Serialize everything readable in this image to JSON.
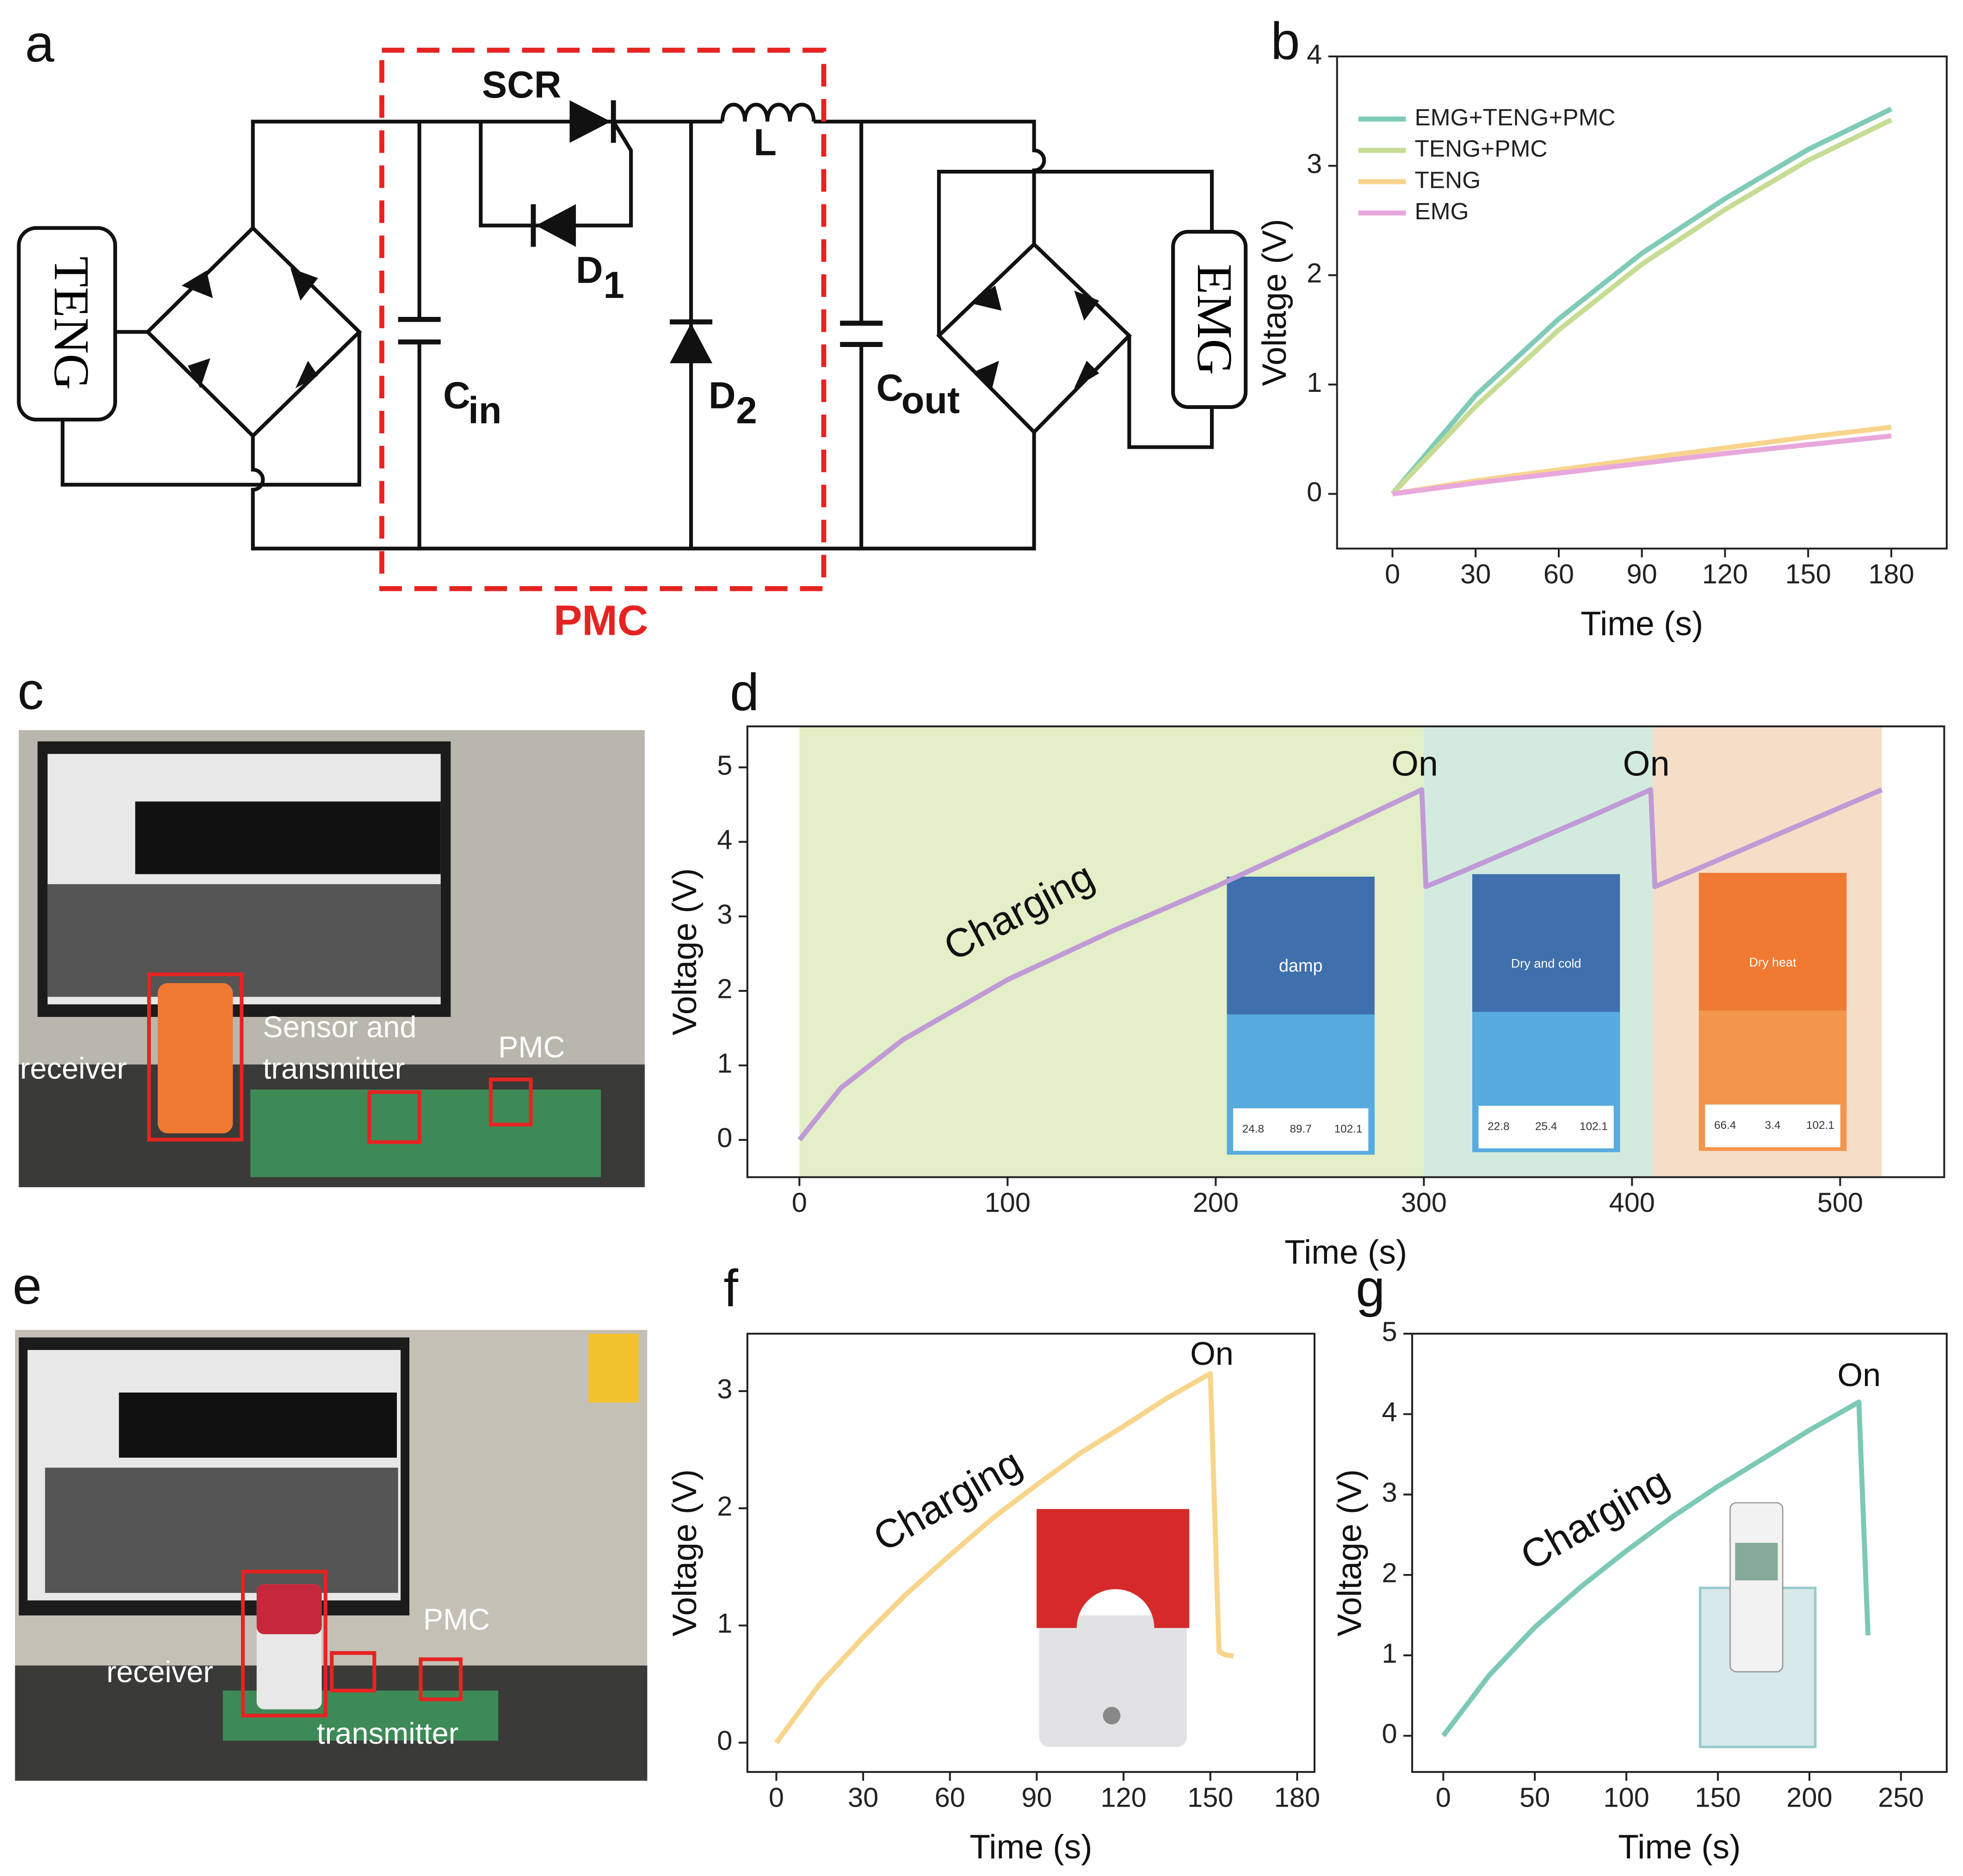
{
  "circuit": {
    "panel": "a",
    "teng": "TENG",
    "emg": "EMG",
    "scr": "SCR",
    "l": "L",
    "d1": "D",
    "d1_sub": "1",
    "cin": "C",
    "cin_sub": "in",
    "d2": "D",
    "d2_sub": "2",
    "cout": "C",
    "cout_sub": "out",
    "pmc": "PMC"
  },
  "photos": [
    {
      "panel": "c",
      "labels": [
        "receiver",
        "Sensor and",
        "transmitter",
        "PMC"
      ]
    },
    {
      "panel": "e",
      "labels": [
        "receiver",
        "PMC",
        "transmitter"
      ]
    }
  ],
  "chart_data": [
    {
      "type": "line",
      "panel": "b",
      "x_label": "Time (s)",
      "y_label": "Voltage (V)",
      "x": [
        0,
        30,
        60,
        90,
        120,
        150,
        180
      ],
      "series": [
        {
          "name": "EMG+TENG+PMC",
          "color": "#80cbb7",
          "values": [
            0,
            0.9,
            1.6,
            2.2,
            2.7,
            3.15,
            3.52
          ]
        },
        {
          "name": "TENG+PMC",
          "color": "#c6dc94",
          "values": [
            0,
            0.8,
            1.5,
            2.1,
            2.6,
            3.05,
            3.42
          ]
        },
        {
          "name": "TENG",
          "color": "#f8d48c",
          "values": [
            0,
            0.12,
            0.22,
            0.32,
            0.42,
            0.52,
            0.61
          ]
        },
        {
          "name": "EMG",
          "color": "#e8a8dc",
          "values": [
            0,
            0.1,
            0.19,
            0.28,
            0.37,
            0.45,
            0.53
          ]
        }
      ],
      "xlim": [
        -20,
        200
      ],
      "ylim": [
        -0.5,
        4
      ],
      "xticks": [
        0,
        30,
        60,
        90,
        120,
        150,
        180
      ],
      "yticks": [
        0,
        1,
        2,
        3,
        4
      ],
      "legend": "upper left"
    },
    {
      "type": "line",
      "panel": "d",
      "x_label": "Time (s)",
      "y_label": "Voltage (V)",
      "x": [
        0,
        20,
        50,
        100,
        150,
        200,
        250,
        299,
        301,
        320,
        350,
        380,
        409,
        411,
        430,
        460,
        490,
        520
      ],
      "series": [
        {
          "name": null,
          "color": "#c09ad6",
          "values": [
            0,
            0.7,
            1.35,
            2.15,
            2.8,
            3.4,
            4.05,
            4.7,
            3.4,
            3.62,
            3.98,
            4.34,
            4.7,
            3.4,
            3.62,
            3.98,
            4.34,
            4.7
          ]
        }
      ],
      "regions": [
        {
          "x": [
            0,
            300
          ],
          "color": "#e3efc7"
        },
        {
          "x": [
            300,
            410
          ],
          "color": "#d3ebdf"
        },
        {
          "x": [
            410,
            520
          ],
          "color": "#f5dec7"
        }
      ],
      "insets": [
        {
          "status": "damp",
          "readings": [
            "24.8",
            "89.7",
            "102.1"
          ]
        },
        {
          "status": "Dry and cold",
          "readings": [
            "22.8",
            "25.4",
            "102.1"
          ]
        },
        {
          "status": "Dry heat",
          "readings": [
            "66.4",
            "3.4",
            "102.1"
          ]
        }
      ],
      "annotations": [
        "Charging",
        "On",
        "On"
      ],
      "xlim": [
        -25,
        550
      ],
      "ylim": [
        -0.5,
        5.55
      ],
      "xticks": [
        0,
        100,
        200,
        300,
        400,
        500
      ],
      "yticks": [
        0,
        1,
        2,
        3,
        4,
        5
      ]
    },
    {
      "type": "line",
      "panel": "f",
      "x_label": "Time (s)",
      "y_label": "Voltage (V)",
      "x": [
        0,
        15,
        30,
        45,
        60,
        75,
        90,
        105,
        120,
        135,
        150,
        153,
        155,
        158
      ],
      "series": [
        {
          "name": null,
          "color": "#f7d58b",
          "values": [
            0,
            0.5,
            0.9,
            1.27,
            1.6,
            1.92,
            2.2,
            2.47,
            2.7,
            2.94,
            3.15,
            0.78,
            0.75,
            0.74
          ]
        }
      ],
      "annotations": [
        "Charging",
        "On"
      ],
      "xlim": [
        -10,
        186
      ],
      "ylim": [
        -0.25,
        3.49
      ],
      "xticks": [
        0,
        30,
        60,
        90,
        120,
        150,
        180
      ],
      "yticks": [
        0,
        1,
        2,
        3
      ]
    },
    {
      "type": "line",
      "panel": "g",
      "x_label": "Time (s)",
      "y_label": "Voltage (V)",
      "x": [
        0,
        25,
        50,
        75,
        100,
        125,
        150,
        175,
        200,
        227,
        232
      ],
      "series": [
        {
          "name": null,
          "color": "#7cc9b5",
          "values": [
            0,
            0.75,
            1.35,
            1.85,
            2.3,
            2.72,
            3.1,
            3.45,
            3.8,
            4.15,
            1.25
          ]
        }
      ],
      "annotations": [
        "Charging",
        "On"
      ],
      "xlim": [
        -17,
        275
      ],
      "ylim": [
        -0.45,
        5
      ],
      "xticks": [
        0,
        50,
        100,
        150,
        200,
        250
      ],
      "yticks": [
        0,
        1,
        2,
        3,
        4,
        5
      ]
    }
  ]
}
